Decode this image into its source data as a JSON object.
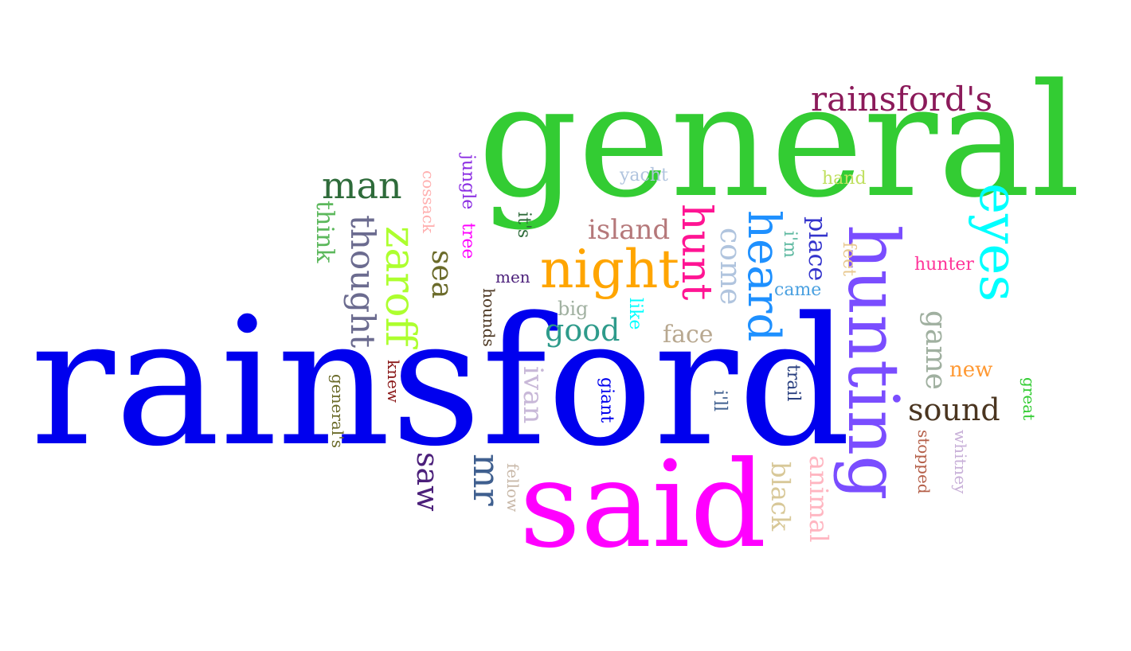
{
  "words": [
    {
      "text": "rainsford",
      "color": "#0000ee"
    },
    {
      "text": "general",
      "color": "#33cc33"
    },
    {
      "text": "said",
      "color": "#ff00ff"
    },
    {
      "text": "hunting",
      "color": "#7a4dff"
    },
    {
      "text": "rainsford's",
      "color": "#8b1a5a"
    },
    {
      "text": "night",
      "color": "#ffa500"
    },
    {
      "text": "eyes",
      "color": "#00ffff"
    },
    {
      "text": "heard",
      "color": "#1e90ff"
    },
    {
      "text": "hunt",
      "color": "#ff1493"
    },
    {
      "text": "man",
      "color": "#2e6b3a"
    },
    {
      "text": "zaroff",
      "color": "#adff2f"
    },
    {
      "text": "thought",
      "color": "#6b6b8f"
    },
    {
      "text": "sound",
      "color": "#4a3520"
    },
    {
      "text": "island",
      "color": "#b5787a"
    },
    {
      "text": "good",
      "color": "#2e9b8b"
    },
    {
      "text": "saw",
      "color": "#4b1f7a"
    },
    {
      "text": "mr",
      "color": "#3f5f8f"
    },
    {
      "text": "sea",
      "color": "#6b6b2a"
    },
    {
      "text": "come",
      "color": "#b0c4de"
    },
    {
      "text": "game",
      "color": "#a0b0a0"
    },
    {
      "text": "place",
      "color": "#3333cc"
    },
    {
      "text": "face",
      "color": "#b8a890"
    },
    {
      "text": "ivan",
      "color": "#c8b8d8"
    },
    {
      "text": "black",
      "color": "#d8c898"
    },
    {
      "text": "animal",
      "color": "#ffb6c1"
    },
    {
      "text": "new",
      "color": "#ff9933"
    },
    {
      "text": "think",
      "color": "#5cb85c"
    },
    {
      "text": "yacht",
      "color": "#b0c4de"
    },
    {
      "text": "hand",
      "color": "#c0e060"
    },
    {
      "text": "hunter",
      "color": "#ff3399"
    },
    {
      "text": "jungle",
      "color": "#8a2be2"
    },
    {
      "text": "tree",
      "color": "#ff00ff"
    },
    {
      "text": "cossack",
      "color": "#ffb0b0"
    },
    {
      "text": "it's",
      "color": "#2e6b3a"
    },
    {
      "text": "men",
      "color": "#4b1f7a"
    },
    {
      "text": "i'm",
      "color": "#5cb8a0"
    },
    {
      "text": "feet",
      "color": "#e8c890"
    },
    {
      "text": "came",
      "color": "#4aa0e0"
    },
    {
      "text": "big",
      "color": "#a0b0a0"
    },
    {
      "text": "like",
      "color": "#00ffff"
    },
    {
      "text": "hounds",
      "color": "#4a3520"
    },
    {
      "text": "knew",
      "color": "#8b1a1a"
    },
    {
      "text": "general's",
      "color": "#6b6b2a"
    },
    {
      "text": "giant",
      "color": "#0000ee"
    },
    {
      "text": "i'll",
      "color": "#3f5f8f"
    },
    {
      "text": "trail",
      "color": "#2a4080"
    },
    {
      "text": "fellow",
      "color": "#c8b8a8"
    },
    {
      "text": "stopped",
      "color": "#b5604a"
    },
    {
      "text": "whitney",
      "color": "#c8b0d8"
    },
    {
      "text": "great",
      "color": "#33cc33"
    }
  ]
}
